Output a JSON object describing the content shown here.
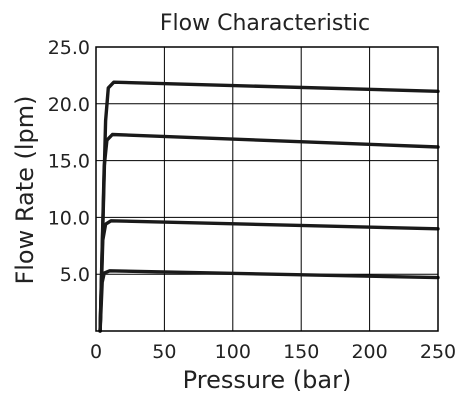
{
  "chart_data": {
    "type": "line",
    "title": "Flow Characteristic",
    "xlabel": "Pressure (bar)",
    "ylabel": "Flow Rate (lpm)",
    "xlim": [
      0,
      250
    ],
    "ylim": [
      0,
      25
    ],
    "x_ticks": [
      "0",
      "50",
      "100",
      "150",
      "200",
      "250"
    ],
    "y_ticks": [
      "5.0",
      "10.0",
      "15.0",
      "20.0",
      "25.0"
    ],
    "grid": true,
    "legend": "none",
    "series": [
      {
        "x": [
          3,
          7,
          9,
          13,
          250
        ],
        "y": [
          0,
          18.5,
          21.4,
          21.9,
          21.1
        ]
      },
      {
        "x": [
          3,
          6,
          8,
          12,
          250
        ],
        "y": [
          0,
          14.5,
          16.8,
          17.3,
          16.2
        ]
      },
      {
        "x": [
          3,
          5,
          7,
          11,
          250
        ],
        "y": [
          0,
          8.0,
          9.4,
          9.7,
          9.0
        ]
      },
      {
        "x": [
          3,
          4.5,
          6,
          10,
          250
        ],
        "y": [
          0,
          4.3,
          5.1,
          5.3,
          4.7
        ]
      }
    ]
  }
}
